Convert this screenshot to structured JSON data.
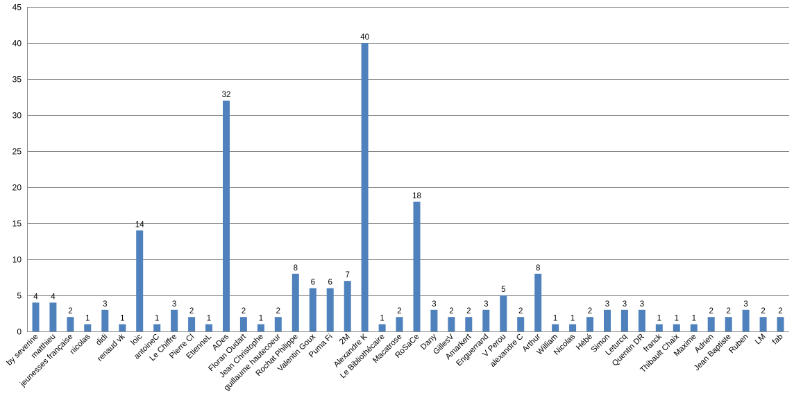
{
  "chart_data": {
    "type": "bar",
    "title": "",
    "xlabel": "",
    "ylabel": "",
    "ylim": [
      0,
      45
    ],
    "ytick_step": 5,
    "grid": true,
    "legend": "none",
    "bar_color": "#4F81BD",
    "categories": [
      "by severine",
      "matthieu",
      "jeunesses française",
      "nicolas",
      "didi",
      "renaud vk",
      "loic",
      "antoineC",
      "Le Chiffre",
      "Pierre Cl",
      "EtienneL",
      "ADes",
      "Floran Oudart",
      "Jean Christophe",
      "guillaume hautecoeur",
      "Rochat Philippe",
      "Valentin Goux",
      "Puma Fi",
      "2M",
      "Alexandre K",
      "Le Bibliothécaire",
      "Macatrose",
      "RoSaCe",
      "Dany",
      "GillesV",
      "Amarkert",
      "Enguerrand",
      "V Perou",
      "alexandre C",
      "Arthur",
      "William",
      "Nicolas",
      "Hébé",
      "Simon",
      "Leturcq",
      "Quentin DR",
      "franck",
      "Thibault Chaix",
      "Maxime",
      "Adrien",
      "Jean Baptiste",
      "Ruben",
      "LM",
      "fab"
    ],
    "values": [
      4,
      4,
      2,
      1,
      3,
      1,
      14,
      1,
      3,
      2,
      1,
      32,
      2,
      1,
      2,
      8,
      6,
      6,
      7,
      40,
      1,
      2,
      18,
      3,
      2,
      2,
      3,
      5,
      2,
      8,
      1,
      1,
      2,
      3,
      3,
      3,
      1,
      1,
      1,
      2,
      2,
      3,
      2,
      2
    ]
  }
}
